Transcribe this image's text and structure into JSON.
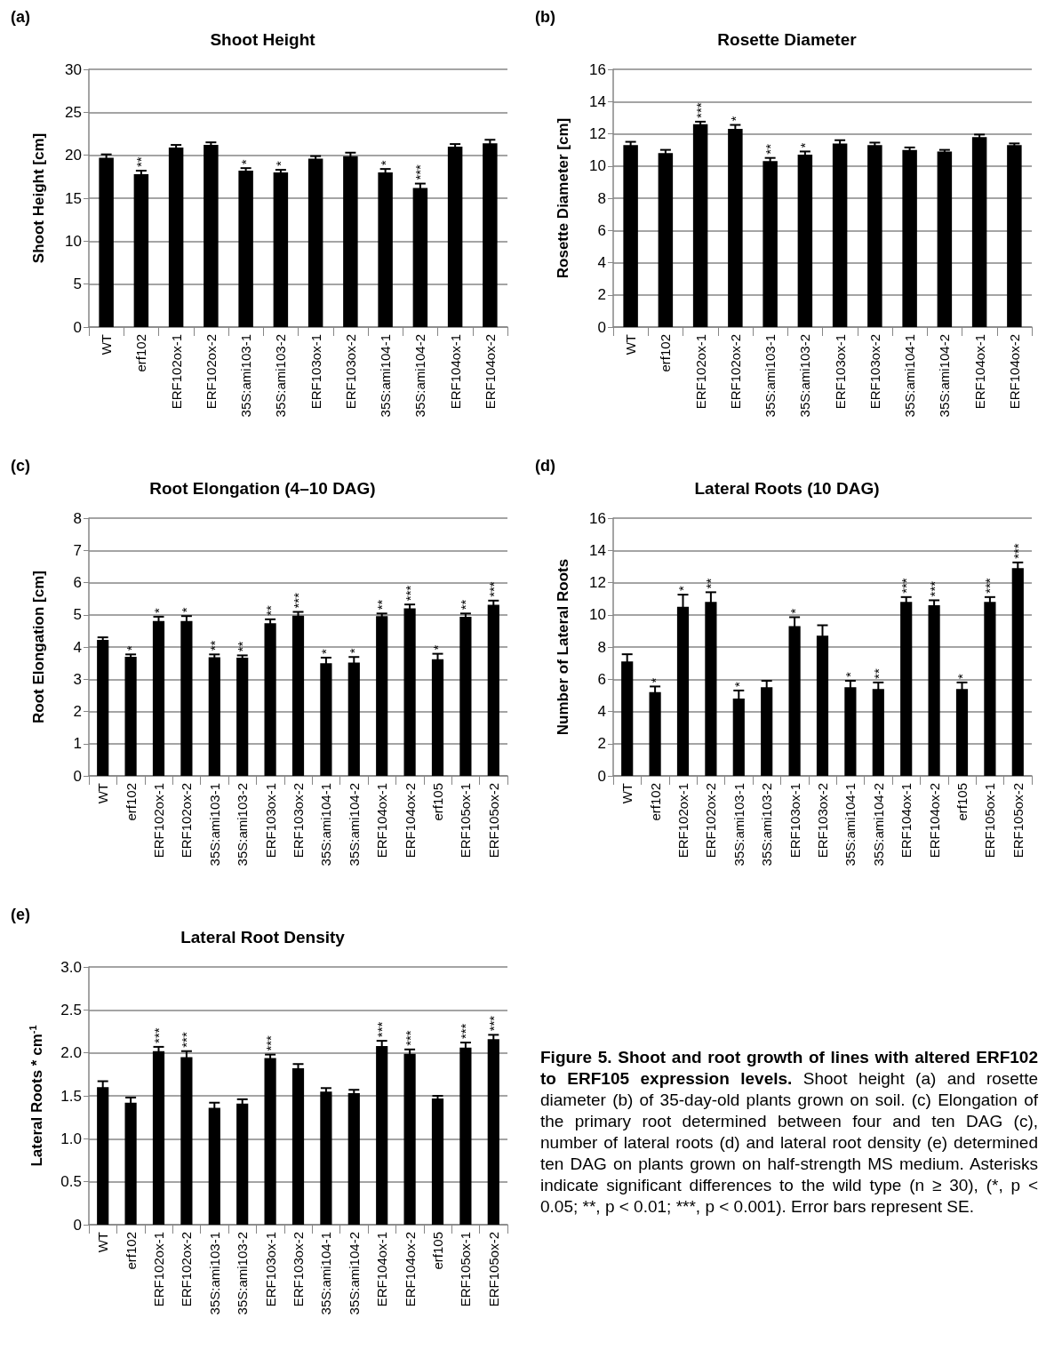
{
  "chart_data": [
    {
      "type": "bar",
      "title": "Shoot Height",
      "ylabel": "Shoot Height [cm]",
      "annotations": [
        "(a)"
      ],
      "color": "#000000",
      "grid": "y",
      "categories": [
        "WT",
        "erf102",
        "ERF102ox-1",
        "ERF102ox-2",
        "35S:ami103-1",
        "35S:ami103-2",
        "ERF103ox-1",
        "ERF103ox-2",
        "35S:ami104-1",
        "35S:ami104-2",
        "ERF104ox-1",
        "ERF104ox-2"
      ],
      "values": [
        19.7,
        17.8,
        20.9,
        21.2,
        18.2,
        18.0,
        19.6,
        19.9,
        18.0,
        16.2,
        21.0,
        21.4
      ],
      "errors": [
        0.4,
        0.4,
        0.3,
        0.3,
        0.3,
        0.3,
        0.3,
        0.4,
        0.4,
        0.5,
        0.3,
        0.4
      ],
      "value_labels": [
        null,
        "**",
        null,
        null,
        "*",
        "*",
        null,
        null,
        "*",
        "***",
        null,
        null
      ],
      "ylim": [
        0,
        30
      ],
      "yticks": [
        0,
        5,
        10,
        15,
        20,
        25,
        30
      ]
    },
    {
      "type": "bar",
      "title": "Rosette Diameter",
      "ylabel": "Rosette Diameter [cm]",
      "annotations": [
        "(b)"
      ],
      "color": "#000000",
      "grid": "y",
      "categories": [
        "WT",
        "erf102",
        "ERF102ox-1",
        "ERF102ox-2",
        "35S:ami103-1",
        "35S:ami103-2",
        "ERF103ox-1",
        "ERF103ox-2",
        "35S:ami104-1",
        "35S:ami104-2",
        "ERF104ox-1",
        "ERF104ox-2"
      ],
      "values": [
        11.3,
        10.8,
        12.6,
        12.3,
        10.3,
        10.7,
        11.4,
        11.3,
        11.0,
        10.9,
        11.8,
        11.3
      ],
      "errors": [
        0.2,
        0.2,
        0.15,
        0.25,
        0.2,
        0.2,
        0.2,
        0.15,
        0.15,
        0.1,
        0.15,
        0.1
      ],
      "value_labels": [
        null,
        null,
        "***",
        "*",
        "**",
        "*",
        null,
        null,
        null,
        null,
        null,
        null
      ],
      "ylim": [
        0,
        16
      ],
      "yticks": [
        0,
        2,
        4,
        6,
        8,
        10,
        12,
        14,
        16
      ]
    },
    {
      "type": "bar",
      "title": "Root Elongation (4–10 DAG)",
      "ylabel": "Root Elongation [cm]",
      "annotations": [
        "(c)"
      ],
      "color": "#000000",
      "grid": "y",
      "categories": [
        "WT",
        "erf102",
        "ERF102ox-1",
        "ERF102ox-2",
        "35S:ami103-1",
        "35S:ami103-2",
        "ERF103ox-1",
        "ERF103ox-2",
        "35S:ami104-1",
        "35S:ami104-2",
        "ERF104ox-1",
        "ERF104ox-2",
        "erf105",
        "ERF105ox-1",
        "ERF105ox-2"
      ],
      "values": [
        4.22,
        3.7,
        4.81,
        4.81,
        3.68,
        3.67,
        4.74,
        4.97,
        3.5,
        3.52,
        4.96,
        5.2,
        3.62,
        4.94,
        5.31
      ],
      "errors": [
        0.08,
        0.07,
        0.13,
        0.15,
        0.09,
        0.07,
        0.12,
        0.12,
        0.17,
        0.17,
        0.08,
        0.12,
        0.17,
        0.1,
        0.13
      ],
      "value_labels": [
        null,
        "*",
        "*",
        "*",
        "**",
        "**",
        "**",
        "***",
        "*",
        "*",
        "**",
        "***",
        "*",
        "**",
        "***"
      ],
      "ylim": [
        0,
        8
      ],
      "yticks": [
        0,
        1,
        2,
        3,
        4,
        5,
        6,
        7,
        8
      ]
    },
    {
      "type": "bar",
      "title": "Lateral Roots (10 DAG)",
      "ylabel": "Number of Lateral Roots",
      "annotations": [
        "(d)"
      ],
      "color": "#000000",
      "grid": "y",
      "categories": [
        "WT",
        "erf102",
        "ERF102ox-1",
        "ERF102ox-2",
        "35S:ami103-1",
        "35S:ami103-2",
        "ERF103ox-1",
        "ERF103ox-2",
        "35S:ami104-1",
        "35S:ami104-2",
        "ERF104ox-1",
        "ERF104ox-2",
        "erf105",
        "ERF105ox-1",
        "ERF105ox-2"
      ],
      "values": [
        7.1,
        5.2,
        10.5,
        10.8,
        4.8,
        5.5,
        9.3,
        8.7,
        5.5,
        5.4,
        10.8,
        10.6,
        5.4,
        10.8,
        12.9
      ],
      "errors": [
        0.45,
        0.35,
        0.75,
        0.6,
        0.5,
        0.4,
        0.55,
        0.65,
        0.4,
        0.4,
        0.3,
        0.3,
        0.4,
        0.3,
        0.35
      ],
      "value_labels": [
        null,
        "*",
        "*",
        "**",
        "*",
        null,
        "*",
        null,
        "*",
        "**",
        "***",
        "***",
        "*",
        "***",
        "***"
      ],
      "ylim": [
        0,
        16
      ],
      "yticks": [
        0,
        2,
        4,
        6,
        8,
        10,
        12,
        14,
        16
      ]
    },
    {
      "type": "bar",
      "title": "Lateral Root Density",
      "ylabel": "Lateral Roots * cm$^{-1}$",
      "annotations": [
        "(e)"
      ],
      "color": "#000000",
      "grid": "y",
      "categories": [
        "WT",
        "erf102",
        "ERF102ox-1",
        "ERF102ox-2",
        "35S:ami103-1",
        "35S:ami103-2",
        "ERF103ox-1",
        "ERF103ox-2",
        "35S:ami104-1",
        "35S:ami104-2",
        "ERF104ox-1",
        "ERF104ox-2",
        "erf105",
        "ERF105ox-1",
        "ERF105ox-2"
      ],
      "values": [
        1.6,
        1.42,
        2.02,
        1.95,
        1.36,
        1.41,
        1.94,
        1.82,
        1.55,
        1.53,
        2.08,
        1.99,
        1.47,
        2.06,
        2.16
      ],
      "errors": [
        0.07,
        0.06,
        0.05,
        0.07,
        0.06,
        0.05,
        0.04,
        0.05,
        0.04,
        0.04,
        0.06,
        0.05,
        0.03,
        0.06,
        0.05
      ],
      "value_labels": [
        null,
        null,
        "***",
        "***",
        null,
        null,
        "***",
        null,
        null,
        null,
        "***",
        "***",
        null,
        "***",
        "***"
      ],
      "ylim": [
        0,
        3
      ],
      "yticks": [
        0,
        {
          "value": 0.5,
          "label": "0.5"
        },
        {
          "value": 1,
          "label": "1.0"
        },
        {
          "value": 1.5,
          "label": "1.5"
        },
        {
          "value": 2,
          "label": "2.0"
        },
        {
          "value": 2.5,
          "label": "2.5"
        },
        {
          "value": 3,
          "label": "3.0"
        }
      ]
    },
    {
      "type": "other",
      "title": "Figure 5. Shoot and root growth of lines with altered ERF102 to ERF105 expression levels.",
      "annotations": [
        "Shoot height (a) and rosette diameter (b) of 35-day-old plants grown on soil. (c) Elongation of the primary root determined between four and ten DAG (c), number of lateral roots (d) and lateral root density (e) determined ten DAG on plants grown on half-strength MS medium. Asterisks indicate significant differences to the wild type (n ≥ 30), (*, p < 0.05; **, p < 0.01; ***, p < 0.001). Error bars represent SE."
      ]
    }
  ]
}
